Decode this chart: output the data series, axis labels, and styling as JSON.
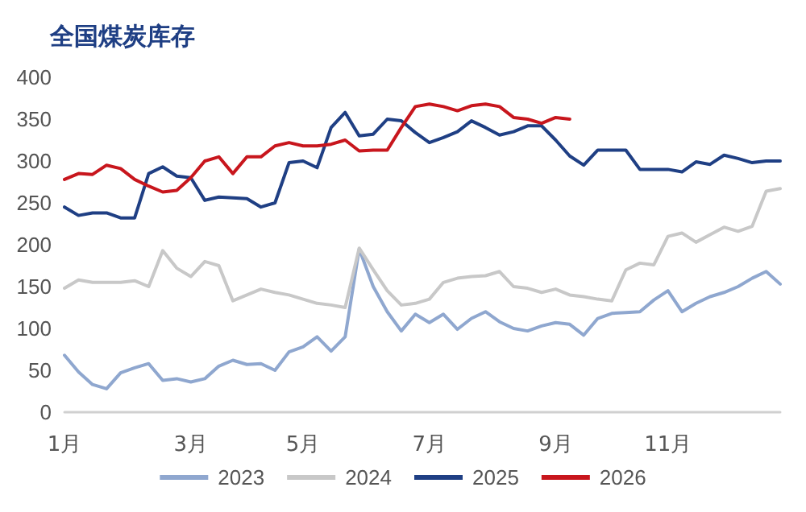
{
  "chart_data": {
    "type": "line",
    "title": "全国煤炭库存",
    "categories": [
      "1月",
      null,
      null,
      null,
      null,
      null,
      null,
      null,
      null,
      "3月",
      null,
      null,
      null,
      null,
      null,
      null,
      null,
      "5月",
      null,
      null,
      null,
      null,
      null,
      null,
      null,
      null,
      "7月",
      null,
      null,
      null,
      null,
      null,
      null,
      null,
      null,
      "9月",
      null,
      null,
      null,
      null,
      null,
      null,
      null,
      "11月",
      null,
      null,
      null,
      null,
      null,
      null,
      null,
      null
    ],
    "series": [
      {
        "name": "2023",
        "color": "#8fa7cf",
        "values": [
          68,
          48,
          33,
          28,
          47,
          53,
          58,
          38,
          40,
          36,
          40,
          55,
          62,
          57,
          58,
          50,
          72,
          78,
          90,
          73,
          90,
          195,
          150,
          120,
          97,
          117,
          107,
          117,
          99,
          112,
          120,
          108,
          100,
          97,
          103,
          107,
          105,
          92,
          112,
          118,
          119,
          120,
          134,
          145,
          120,
          130,
          138,
          143,
          150,
          160,
          168,
          153
        ]
      },
      {
        "name": "2024",
        "color": "#c8c8c8",
        "values": [
          148,
          158,
          155,
          155,
          155,
          157,
          150,
          193,
          172,
          162,
          180,
          175,
          133,
          140,
          147,
          143,
          140,
          135,
          130,
          128,
          125,
          196,
          170,
          145,
          128,
          130,
          135,
          155,
          160,
          162,
          163,
          168,
          150,
          148,
          143,
          147,
          140,
          138,
          135,
          133,
          170,
          178,
          176,
          210,
          214,
          203,
          212,
          221,
          216,
          222,
          264,
          267
        ]
      },
      {
        "name": "2025",
        "color": "#1f3f84",
        "values": [
          245,
          235,
          238,
          238,
          232,
          232,
          285,
          293,
          282,
          280,
          253,
          257,
          256,
          255,
          245,
          250,
          298,
          300,
          292,
          340,
          358,
          330,
          332,
          350,
          348,
          334,
          322,
          328,
          335,
          348,
          340,
          331,
          335,
          342,
          342,
          325,
          306,
          295,
          313,
          313,
          313,
          290,
          290,
          290,
          287,
          299,
          296,
          307,
          303,
          298,
          300,
          300
        ]
      },
      {
        "name": "2026",
        "color": "#c8161d",
        "values": [
          278,
          285,
          284,
          295,
          291,
          278,
          270,
          263,
          265,
          280,
          300,
          305,
          285,
          305,
          305,
          318,
          322,
          318,
          318,
          320,
          325,
          312,
          313,
          313,
          340,
          365,
          368,
          365,
          360,
          366,
          368,
          365,
          352,
          350,
          345,
          352,
          350,
          null,
          null,
          null,
          null,
          null,
          null,
          null,
          null,
          null,
          null,
          null,
          null,
          null,
          null,
          null
        ]
      }
    ],
    "ylim": [
      0,
      400
    ],
    "yticks": [
      0,
      50,
      100,
      150,
      200,
      250,
      300,
      350,
      400
    ],
    "grid": false,
    "legend": "bottom",
    "marker": "none",
    "line_style": "solid"
  }
}
